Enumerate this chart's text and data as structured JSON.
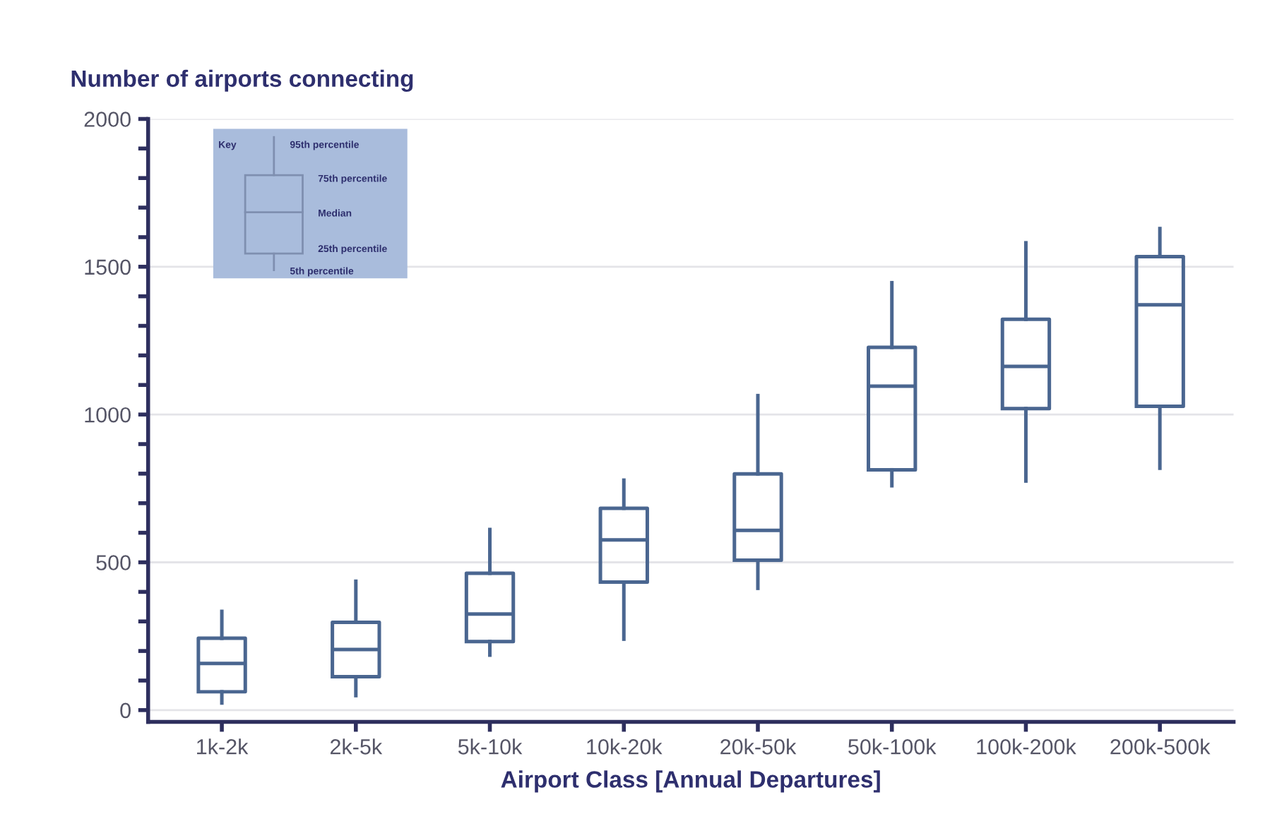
{
  "chart_data": {
    "type": "box",
    "ylabel": "Number of airports connecting",
    "xlabel": "Airport Class [Annual Departures]",
    "categories": [
      "1k-2k",
      "2k-5k",
      "5k-10k",
      "10k-20k",
      "20k-50k",
      "50k-100k",
      "100k-200k",
      "200k-500k"
    ],
    "color": "#4a6690",
    "boxes": [
      {
        "low": 24,
        "q1": 62,
        "median": 158,
        "q3": 243,
        "high": 334
      },
      {
        "low": 49,
        "q1": 113,
        "median": 205,
        "q3": 297,
        "high": 436
      },
      {
        "low": 186,
        "q1": 232,
        "median": 325,
        "q3": 463,
        "high": 611
      },
      {
        "low": 240,
        "q1": 433,
        "median": 576,
        "q3": 683,
        "high": 778
      },
      {
        "low": 412,
        "q1": 507,
        "median": 608,
        "q3": 799,
        "high": 1064
      },
      {
        "low": 759,
        "q1": 813,
        "median": 1096,
        "q3": 1227,
        "high": 1446
      },
      {
        "low": 775,
        "q1": 1020,
        "median": 1163,
        "q3": 1322,
        "high": 1581
      },
      {
        "low": 818,
        "q1": 1028,
        "median": 1371,
        "q3": 1534,
        "high": 1629
      }
    ],
    "ylim": [
      -40,
      2000
    ],
    "yticks": [
      0,
      {
        "value": 100,
        "label": null
      },
      {
        "value": 200,
        "label": null
      },
      {
        "value": 300,
        "label": null
      },
      {
        "value": 400,
        "label": null
      },
      500,
      {
        "value": 600,
        "label": null
      },
      {
        "value": 700,
        "label": null
      },
      {
        "value": 800,
        "label": null
      },
      {
        "value": 900,
        "label": null
      },
      1000,
      {
        "value": 1100,
        "label": null
      },
      {
        "value": 1200,
        "label": null
      },
      {
        "value": 1300,
        "label": null
      },
      {
        "value": 1400,
        "label": null
      },
      1500,
      {
        "value": 1600,
        "label": null
      },
      {
        "value": 1700,
        "label": null
      },
      {
        "value": 1800,
        "label": null
      },
      {
        "value": 1900,
        "label": null
      },
      2000
    ],
    "grid": "y",
    "annotations": [
      "Key",
      "95th percentile",
      "75th percentile",
      "Median",
      "25th percentile",
      "5th percentile"
    ]
  }
}
